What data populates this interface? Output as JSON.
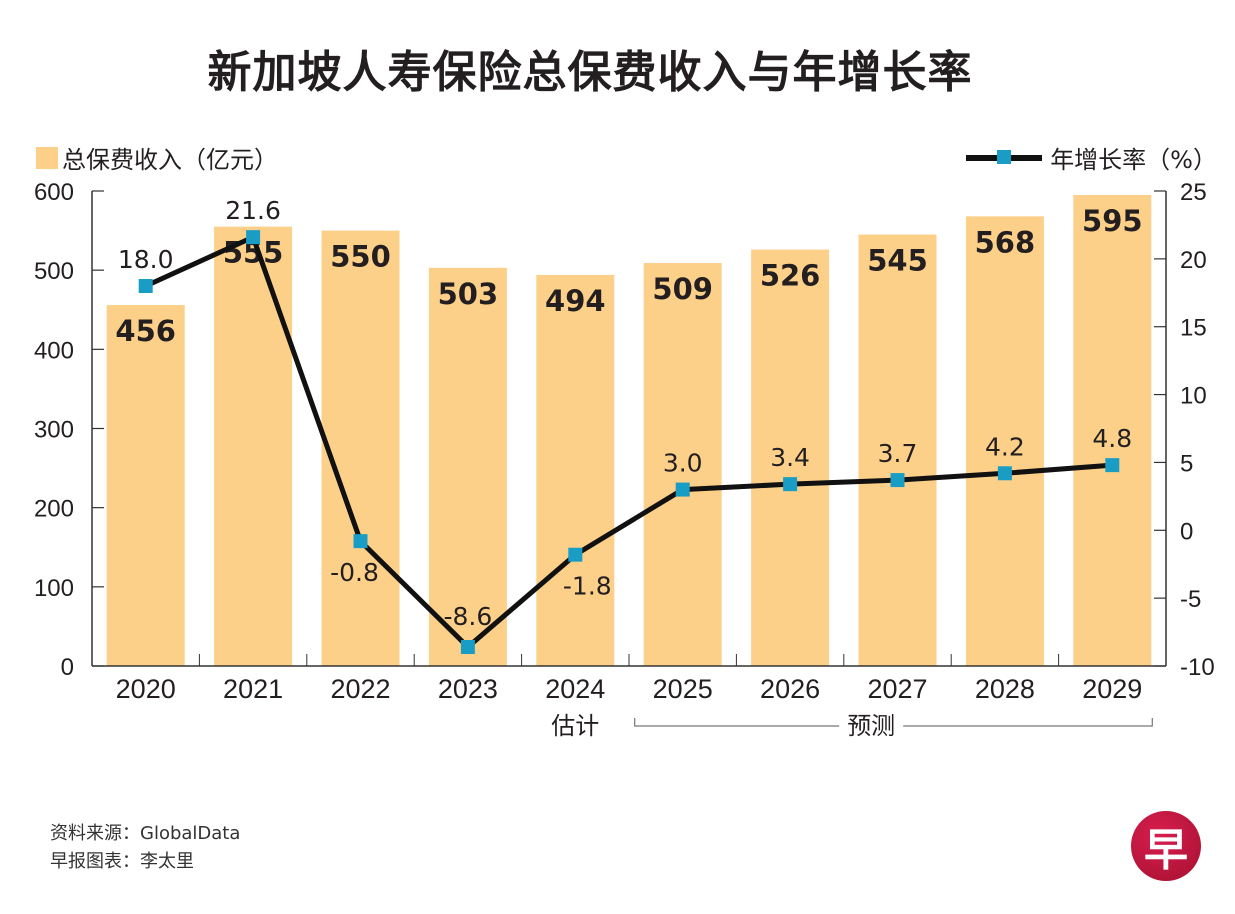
{
  "title": "新加坡人寿保险总保费收入与年增长率",
  "legend": {
    "bars_label": "总保费收入（亿元）",
    "line_label": "年增长率（%）"
  },
  "colors": {
    "bar": "#fdd08a",
    "line": "#111111",
    "marker": "#1a9dc4",
    "text": "#231f20",
    "logo": "#c0143c"
  },
  "chart_data": {
    "type": "bar",
    "title": "新加坡人寿保险总保费收入与年增长率",
    "categories": [
      "2020",
      "2021",
      "2022",
      "2023",
      "2024",
      "2025",
      "2026",
      "2027",
      "2028",
      "2029"
    ],
    "series": [
      {
        "name": "总保费收入（亿元）",
        "type": "bar",
        "axis": "left",
        "values": [
          456,
          555,
          550,
          503,
          494,
          509,
          526,
          545,
          568,
          595
        ]
      },
      {
        "name": "年增长率（%）",
        "type": "line",
        "axis": "right",
        "values": [
          18.0,
          21.6,
          -0.8,
          -8.6,
          -1.8,
          3.0,
          3.4,
          3.7,
          4.2,
          4.8
        ]
      }
    ],
    "bar_labels": [
      "456",
      "555",
      "550",
      "503",
      "494",
      "509",
      "526",
      "545",
      "568",
      "595"
    ],
    "line_labels": [
      "18.0",
      "21.6",
      "-0.8",
      "-8.6",
      "-1.8",
      "3.0",
      "3.4",
      "3.7",
      "4.2",
      "4.8"
    ],
    "y_left": {
      "range": [
        0,
        600
      ],
      "ticks": [
        0,
        100,
        200,
        300,
        400,
        500,
        600
      ]
    },
    "y_right": {
      "range": [
        -10,
        25
      ],
      "ticks": [
        -10,
        -5,
        0,
        5,
        10,
        15,
        20,
        25
      ]
    },
    "annotations": [
      {
        "text": "估计",
        "applies_to": [
          "2024"
        ]
      },
      {
        "text": "预测",
        "applies_to": [
          "2025",
          "2026",
          "2027",
          "2028",
          "2029"
        ]
      }
    ],
    "grid": false,
    "legend_placement": "top"
  },
  "footer": {
    "source": "资料来源：GlobalData",
    "credit": "早报图表：李太里",
    "logo_char": "早"
  }
}
